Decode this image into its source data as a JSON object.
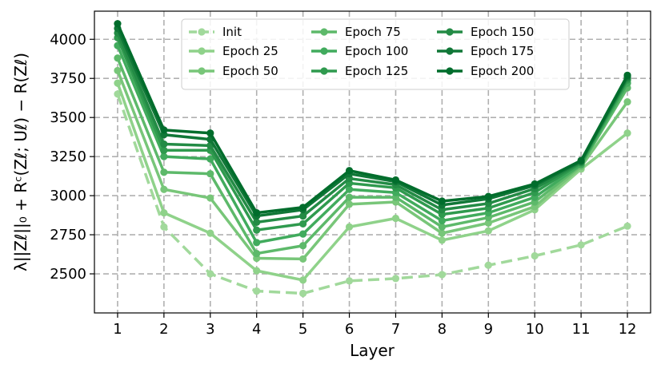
{
  "chart_data": {
    "type": "line",
    "xlabel": "Layer",
    "ylabel": "λ||Zℓ||₀ + Rᶜ(Zℓ; Uℓ) − R(Zℓ)",
    "x": [
      1,
      2,
      3,
      4,
      5,
      6,
      7,
      8,
      9,
      10,
      11,
      12
    ],
    "xticks": [
      "1",
      "2",
      "3",
      "4",
      "5",
      "6",
      "7",
      "8",
      "9",
      "10",
      "11",
      "12"
    ],
    "xlim": [
      0.5,
      12.5
    ],
    "ylim": [
      2250,
      4180
    ],
    "yticks": [
      2500,
      2750,
      3000,
      3250,
      3500,
      3750,
      4000
    ],
    "grid": true,
    "legend_position": "top-center",
    "series": [
      {
        "name": "Init",
        "color": "#a1d99b",
        "dashed": true,
        "values": [
          3650,
          2800,
          2500,
          2390,
          2375,
          2455,
          2470,
          2495,
          2555,
          2615,
          2685,
          2805
        ]
      },
      {
        "name": "Epoch 25",
        "color": "#8fd28a",
        "dashed": false,
        "values": [
          3720,
          2890,
          2760,
          2520,
          2460,
          2800,
          2855,
          2715,
          2775,
          2910,
          3170,
          3400
        ]
      },
      {
        "name": "Epoch 50",
        "color": "#78c679",
        "dashed": false,
        "values": [
          3800,
          3040,
          2985,
          2600,
          2595,
          2945,
          2960,
          2760,
          2825,
          2930,
          3185,
          3600
        ]
      },
      {
        "name": "Epoch 75",
        "color": "#5db96a",
        "dashed": false,
        "values": [
          3880,
          3150,
          3140,
          2630,
          2680,
          2990,
          2990,
          2800,
          2860,
          2960,
          3195,
          3690
        ]
      },
      {
        "name": "Epoch 100",
        "color": "#41ab5d",
        "dashed": false,
        "values": [
          3960,
          3250,
          3235,
          2700,
          2755,
          3040,
          3020,
          2840,
          2890,
          2990,
          3200,
          3720
        ]
      },
      {
        "name": "Epoch 125",
        "color": "#2f9a4e",
        "dashed": false,
        "values": [
          4010,
          3290,
          3290,
          2780,
          2820,
          3080,
          3050,
          2880,
          2920,
          3020,
          3210,
          3740
        ]
      },
      {
        "name": "Epoch 150",
        "color": "#238b45",
        "dashed": false,
        "values": [
          4040,
          3330,
          3320,
          2830,
          2870,
          3110,
          3070,
          2910,
          2950,
          3045,
          3215,
          3750
        ]
      },
      {
        "name": "Epoch 175",
        "color": "#107737",
        "dashed": false,
        "values": [
          4070,
          3390,
          3360,
          2870,
          2910,
          3140,
          3090,
          2940,
          2980,
          3065,
          3220,
          3760
        ]
      },
      {
        "name": "Epoch 200",
        "color": "#006d2c",
        "dashed": false,
        "values": [
          4100,
          3420,
          3400,
          2890,
          2925,
          3160,
          3100,
          2965,
          2995,
          3075,
          3225,
          3770
        ]
      }
    ]
  }
}
